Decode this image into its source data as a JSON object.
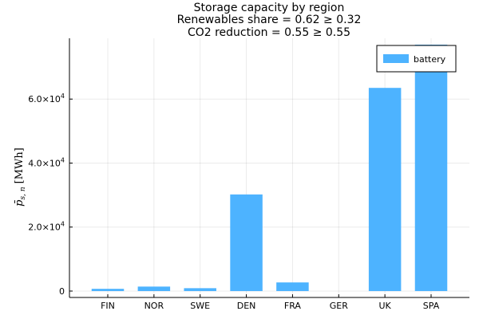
{
  "chart_data": {
    "type": "bar",
    "title_lines": [
      "Storage capacity by region",
      "Renewables share = 0.62 ≥ 0.32",
      "CO2 reduction = 0.55 ≥ 0.55"
    ],
    "xlabel": "",
    "ylabel": "p̄",
    "ylabel_sub": "s, n",
    "ylabel_unit": "[MWh]",
    "categories": [
      "FIN",
      "NOR",
      "SWE",
      "DEN",
      "FRA",
      "GER",
      "UK",
      "SPA"
    ],
    "series": [
      {
        "name": "battery",
        "color": "#4db3ff",
        "values": [
          700,
          1400,
          900,
          30200,
          2700,
          0,
          63500,
          77000
        ]
      }
    ],
    "ylim": [
      -2000,
      79000
    ],
    "yticks": [
      {
        "value": 0,
        "mantissa": "0",
        "exp": ""
      },
      {
        "value": 20000,
        "mantissa": "2.0×10",
        "exp": "4"
      },
      {
        "value": 40000,
        "mantissa": "4.0×10",
        "exp": "4"
      },
      {
        "value": 60000,
        "mantissa": "6.0×10",
        "exp": "4"
      }
    ],
    "grid": true,
    "legend_position": "top-right"
  }
}
